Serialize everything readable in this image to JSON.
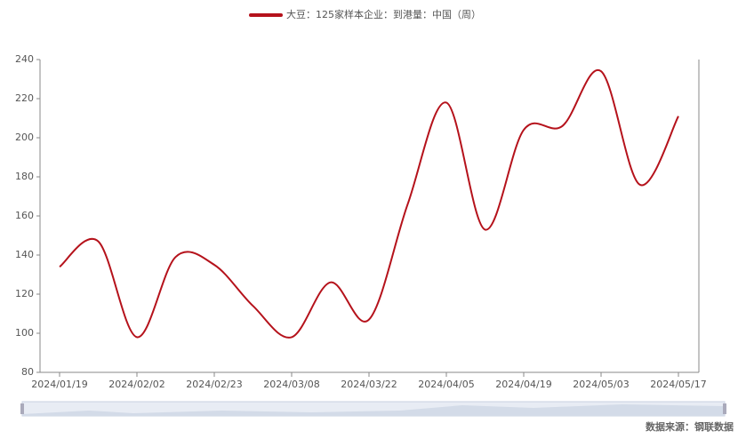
{
  "chart_data": {
    "type": "line",
    "categories": [
      "2024/01/19",
      null,
      "2024/02/02",
      null,
      "2024/02/23",
      null,
      "2024/03/08",
      null,
      "2024/03/22",
      null,
      "2024/04/05",
      null,
      "2024/04/19",
      null,
      "2024/05/03",
      null,
      "2024/05/17"
    ],
    "series": [
      {
        "name": "大豆：125家样本企业：到港量：中国（周）",
        "color": "#b5121b",
        "values": [
          134,
          147,
          98,
          139,
          135,
          114,
          98,
          126,
          107,
          166,
          218,
          153,
          204,
          206,
          234,
          176,
          211
        ]
      }
    ],
    "ylim": [
      80,
      240
    ],
    "yticks": [
      80,
      100,
      120,
      140,
      160,
      180,
      200,
      220,
      240
    ],
    "grid": false,
    "legend": "top",
    "source": "数据来源：钢联数据"
  }
}
